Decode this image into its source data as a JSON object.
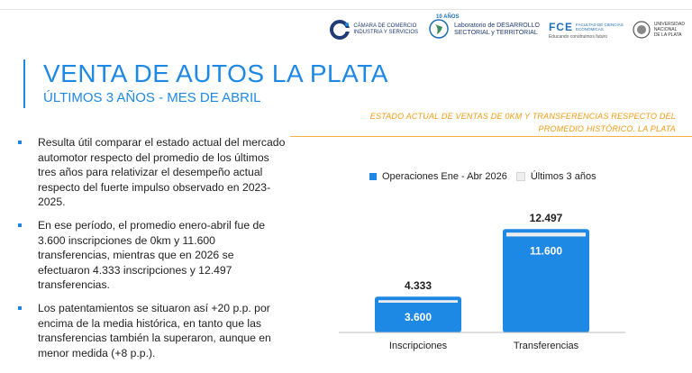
{
  "header": {
    "logos": [
      {
        "name": "camara-comercio-logo",
        "lines": [
          "CÁMARA DE COMERCIO",
          "INDUSTRIA Y SERVICIOS"
        ]
      },
      {
        "name": "laboratorio-logo",
        "badge": "10 AÑOS",
        "lines": [
          "Laboratorio de DESARROLLO",
          "SECTORIAL y TERRITORIAL"
        ]
      },
      {
        "name": "fce-logo",
        "mark": "FCE",
        "lines": [
          "FACULTAD DE CIENCIAS",
          "ECONÓMICAS"
        ],
        "tagline": "Educando construimos futuro"
      },
      {
        "name": "unlp-logo",
        "lines": [
          "UNIVERSIDAD",
          "NACIONAL",
          "DE LA PLATA"
        ]
      }
    ]
  },
  "slide": {
    "title": "VENTA DE AUTOS LA PLATA",
    "subtitle": "ÚLTIMOS 3 AÑOS - MES DE ABRIL"
  },
  "bullets": [
    "Resulta útil comparar el estado actual del mercado automotor respecto del promedio de los últimos tres años para relativizar el desempeño actual respecto del fuerte impulso observado en 2023-2025.",
    "En ese período, el promedio enero-abril fue de 3.600 inscripciones de 0km y 11.600 transferencias, mientras que en 2026 se efectuaron 4.333 inscripciones y 12.497 transferencias.",
    "Los patentamientos se situaron así +20 p.p. por encima de la media histórica, en tanto que las transferencias también la superaron, aunque en menor medida (+8 p.p.)."
  ],
  "chart_data": {
    "type": "bar",
    "title": "ESTADO ACTUAL DE VENTAS DE 0KM Y TRANSFERENCIAS RESPECTO DEL PROMEDIO HISTÓRICO. LA PLATA",
    "categories": [
      "Inscripciones",
      "Transferencias"
    ],
    "series": [
      {
        "name": "Operaciones Ene - Abr 2026",
        "values": [
          4333,
          12497
        ],
        "labels": [
          "4.333",
          "12.497"
        ],
        "color": "#1e88e5"
      },
      {
        "name": "Últimos 3 años",
        "values": [
          3600,
          11600
        ],
        "labels": [
          "3.600",
          "11.600"
        ],
        "color": "#eeeeee"
      }
    ],
    "legend_position": "top",
    "grid": false,
    "ylim": [
      0,
      13500
    ]
  }
}
